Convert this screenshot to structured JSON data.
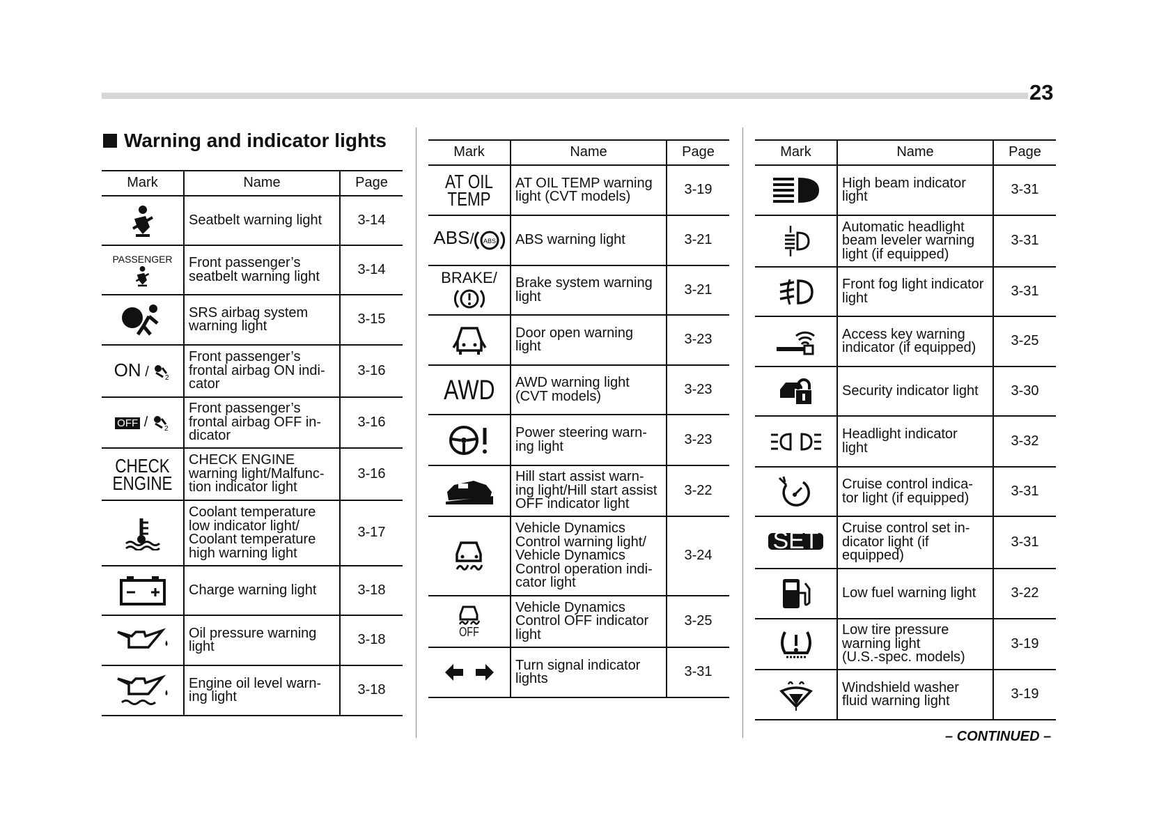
{
  "page_number": "23",
  "section_title": "Warning and indicator lights",
  "continued": "– CONTINUED –",
  "headers": {
    "mark": "Mark",
    "name": "Name",
    "page": "Page"
  },
  "icon_text": {
    "passenger": "PASSENGER",
    "on": "ON",
    "off": "OFF",
    "check": "CHECK",
    "engine": "ENGINE",
    "at_oil": "AT OIL",
    "temp": "TEMP",
    "abs": "ABS",
    "brake": "BRAKE",
    "awd": "AWD",
    "vdc_off": "OFF",
    "set": "SET",
    "slash": "/"
  },
  "tables": [
    {
      "rows": [
        {
          "icon": "seatbelt-icon",
          "name": [
            "Seatbelt warning light"
          ],
          "page": "3-14"
        },
        {
          "icon": "passenger-seatbelt-icon",
          "name": [
            "Front passenger’s",
            "seatbelt warning light"
          ],
          "page": "3-14"
        },
        {
          "icon": "airbag-icon",
          "name": [
            "SRS airbag system",
            "warning light"
          ],
          "page": "3-15"
        },
        {
          "icon": "airbag-on-icon",
          "name": [
            "Front passenger’s",
            "frontal airbag ON indi-",
            "cator"
          ],
          "page": "3-16"
        },
        {
          "icon": "airbag-off-icon",
          "name": [
            "Front passenger’s",
            "frontal airbag OFF in-",
            "dicator"
          ],
          "page": "3-16"
        },
        {
          "icon": "check-engine-icon",
          "name": [
            "CHECK ENGINE",
            "warning light/Malfunc-",
            "tion indicator light"
          ],
          "page": "3-16"
        },
        {
          "icon": "coolant-temperature-icon",
          "name": [
            "Coolant temperature",
            "low indicator light/",
            "Coolant temperature",
            "high warning light"
          ],
          "page": "3-17"
        },
        {
          "icon": "battery-icon",
          "name": [
            "Charge warning light"
          ],
          "page": "3-18"
        },
        {
          "icon": "oil-pressure-icon",
          "name": [
            "Oil pressure warning",
            "light"
          ],
          "page": "3-18"
        },
        {
          "icon": "oil-level-icon",
          "name": [
            "Engine oil level warn-",
            "ing light"
          ],
          "page": "3-18"
        }
      ]
    },
    {
      "rows": [
        {
          "icon": "at-oil-temp-icon",
          "name": [
            "AT OIL TEMP warning",
            "light (CVT models)"
          ],
          "page": "3-19"
        },
        {
          "icon": "abs-icon",
          "name": [
            "ABS warning light"
          ],
          "page": "3-21"
        },
        {
          "icon": "brake-icon",
          "name": [
            "Brake system warning",
            "light"
          ],
          "page": "3-21"
        },
        {
          "icon": "door-open-icon",
          "name": [
            "Door open warning",
            "light"
          ],
          "page": "3-23"
        },
        {
          "icon": "awd-icon",
          "name": [
            "AWD warning light",
            "(CVT models)"
          ],
          "page": "3-23"
        },
        {
          "icon": "power-steering-icon",
          "name": [
            "Power steering warn-",
            "ing light"
          ],
          "page": "3-23"
        },
        {
          "icon": "hill-start-icon",
          "name": [
            "Hill start assist warn-",
            "ing light/Hill start assist",
            "OFF indicator light"
          ],
          "page": "3-22"
        },
        {
          "icon": "vehicle-dynamics-icon",
          "name": [
            "Vehicle Dynamics",
            "Control warning light/",
            "Vehicle Dynamics",
            "Control operation indi-",
            "cator light"
          ],
          "page": "3-24"
        },
        {
          "icon": "vehicle-dynamics-off-icon",
          "name": [
            "Vehicle Dynamics",
            "Control OFF indicator",
            "light"
          ],
          "page": "3-25"
        },
        {
          "icon": "turn-signal-icon",
          "name": [
            "Turn signal indicator",
            "lights"
          ],
          "page": "3-31"
        }
      ]
    },
    {
      "rows": [
        {
          "icon": "high-beam-icon",
          "name": [
            "High beam indicator",
            "light"
          ],
          "page": "3-31"
        },
        {
          "icon": "headlight-leveler-icon",
          "name": [
            "Automatic headlight",
            "beam leveler warning",
            "light (if equipped)"
          ],
          "page": "3-31"
        },
        {
          "icon": "front-fog-icon",
          "name": [
            "Front fog light indicator",
            "light"
          ],
          "page": "3-31"
        },
        {
          "icon": "access-key-icon",
          "name": [
            "Access key warning",
            "indicator (if equipped)"
          ],
          "page": "3-25"
        },
        {
          "icon": "security-icon",
          "name": [
            "Security indicator light"
          ],
          "page": "3-30"
        },
        {
          "icon": "headlight-indicator-icon",
          "name": [
            "Headlight indicator",
            "light"
          ],
          "page": "3-32"
        },
        {
          "icon": "cruise-control-icon",
          "name": [
            "Cruise control indica-",
            "tor light (if equipped)"
          ],
          "page": "3-31"
        },
        {
          "icon": "cruise-set-icon",
          "name": [
            "Cruise control set in-",
            "dicator light (if",
            "equipped)"
          ],
          "page": "3-31"
        },
        {
          "icon": "low-fuel-icon",
          "name": [
            "Low fuel warning light"
          ],
          "page": "3-22"
        },
        {
          "icon": "tire-pressure-icon",
          "name": [
            "Low tire pressure",
            "warning light",
            "(U.S.-spec. models)"
          ],
          "page": "3-19"
        },
        {
          "icon": "washer-fluid-icon",
          "name": [
            "Windshield washer",
            "fluid warning light"
          ],
          "page": "3-19"
        }
      ]
    }
  ]
}
